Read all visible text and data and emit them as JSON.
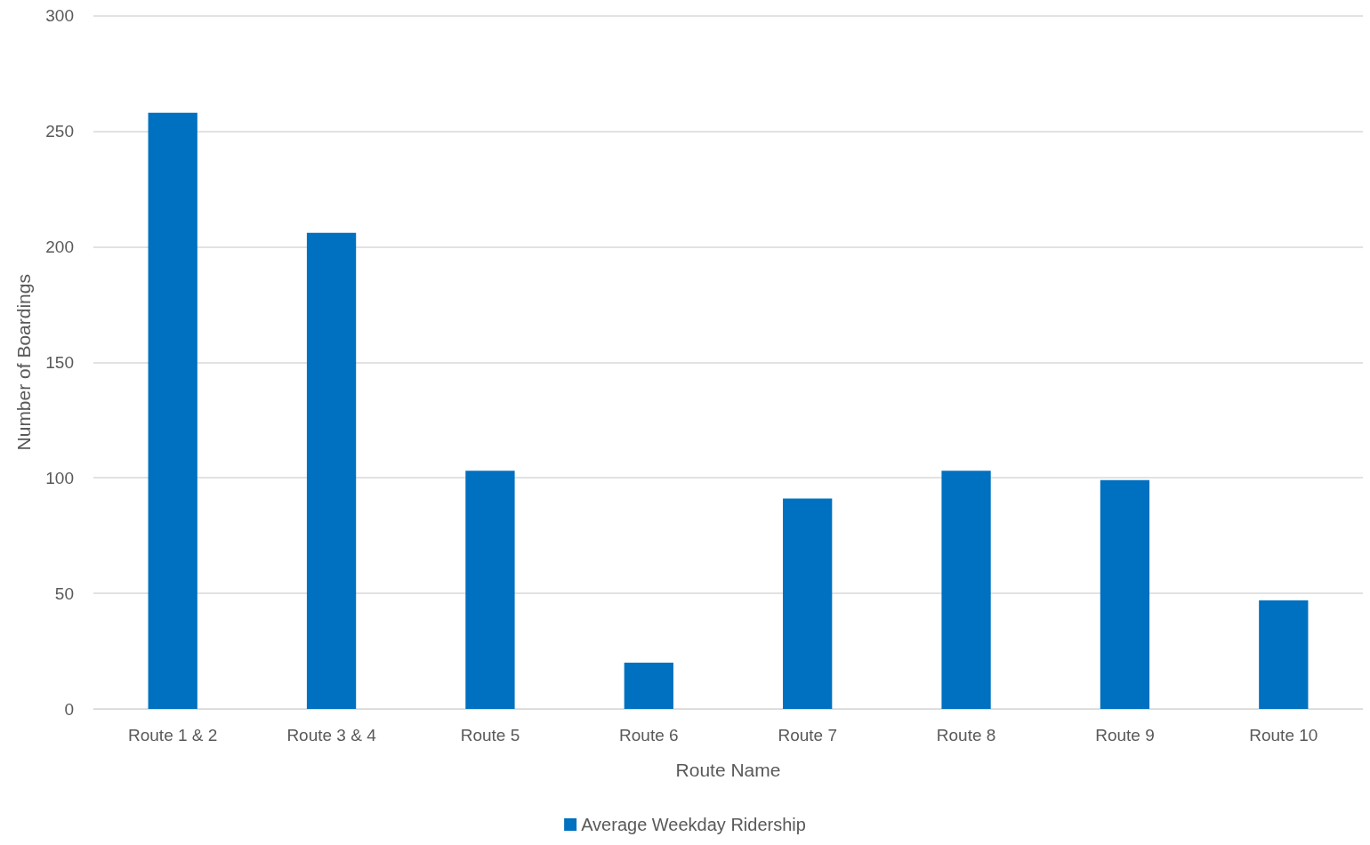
{
  "chart_data": {
    "type": "bar",
    "xlabel": "Route Name",
    "ylabel": "Number of Boardings",
    "categories": [
      "Route 1 & 2",
      "Route 3 & 4",
      "Route 5",
      "Route 6",
      "Route 7",
      "Route 8",
      "Route 9",
      "Route 10"
    ],
    "series": [
      {
        "name": "Average Weekday Ridership",
        "color": "#0070c0",
        "values": [
          258,
          206,
          103,
          20,
          91,
          103,
          99,
          47
        ]
      }
    ],
    "ylim": [
      0,
      300
    ],
    "yticks": [
      0,
      50,
      100,
      150,
      200,
      250,
      300
    ],
    "grid": "y",
    "legend": "bottom"
  }
}
